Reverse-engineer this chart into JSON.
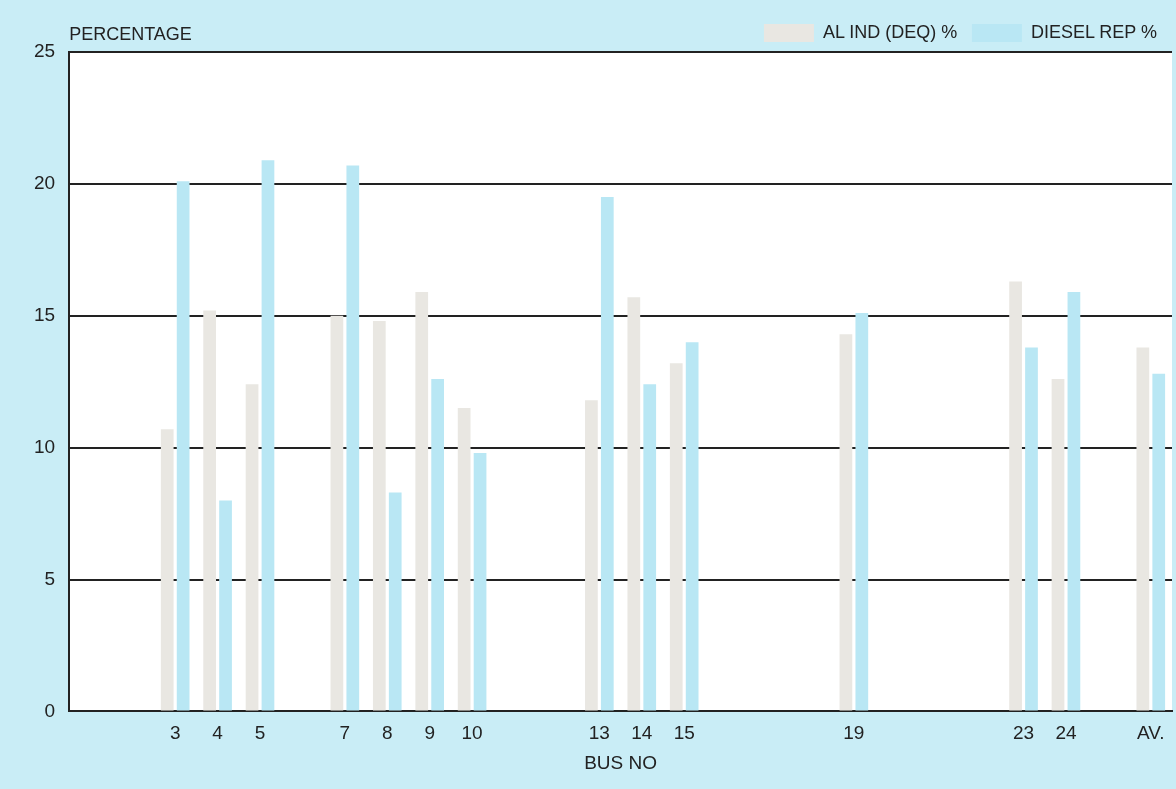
{
  "chart_data": {
    "type": "bar",
    "categories": [
      null,
      null,
      "3",
      "4",
      "5",
      null,
      "7",
      "8",
      "9",
      "10",
      null,
      null,
      "13",
      "14",
      "15",
      null,
      null,
      null,
      "19",
      null,
      null,
      null,
      "23",
      "24",
      null,
      "AV."
    ],
    "series": [
      {
        "name": "AL IND (DEQ) %",
        "color": "#e9e7e2",
        "values": [
          null,
          null,
          10.7,
          15.2,
          12.4,
          null,
          15.0,
          14.8,
          15.9,
          11.5,
          null,
          null,
          11.8,
          15.7,
          13.2,
          null,
          null,
          null,
          14.3,
          null,
          null,
          null,
          16.3,
          12.6,
          null,
          13.8
        ]
      },
      {
        "name": "DIESEL REP %",
        "color": "#b9e7f4",
        "values": [
          null,
          null,
          20.1,
          8.0,
          20.9,
          null,
          20.7,
          8.3,
          12.6,
          9.8,
          null,
          null,
          19.5,
          12.4,
          14.0,
          null,
          null,
          null,
          15.1,
          null,
          null,
          null,
          13.8,
          15.9,
          null,
          12.8
        ]
      }
    ],
    "ylabel": "PERCENTAGE",
    "xlabel": "BUS NO",
    "ylim": [
      0,
      25
    ],
    "yticks": [
      0,
      5,
      10,
      15,
      20,
      25
    ],
    "grid": "y",
    "legend": "top right"
  }
}
